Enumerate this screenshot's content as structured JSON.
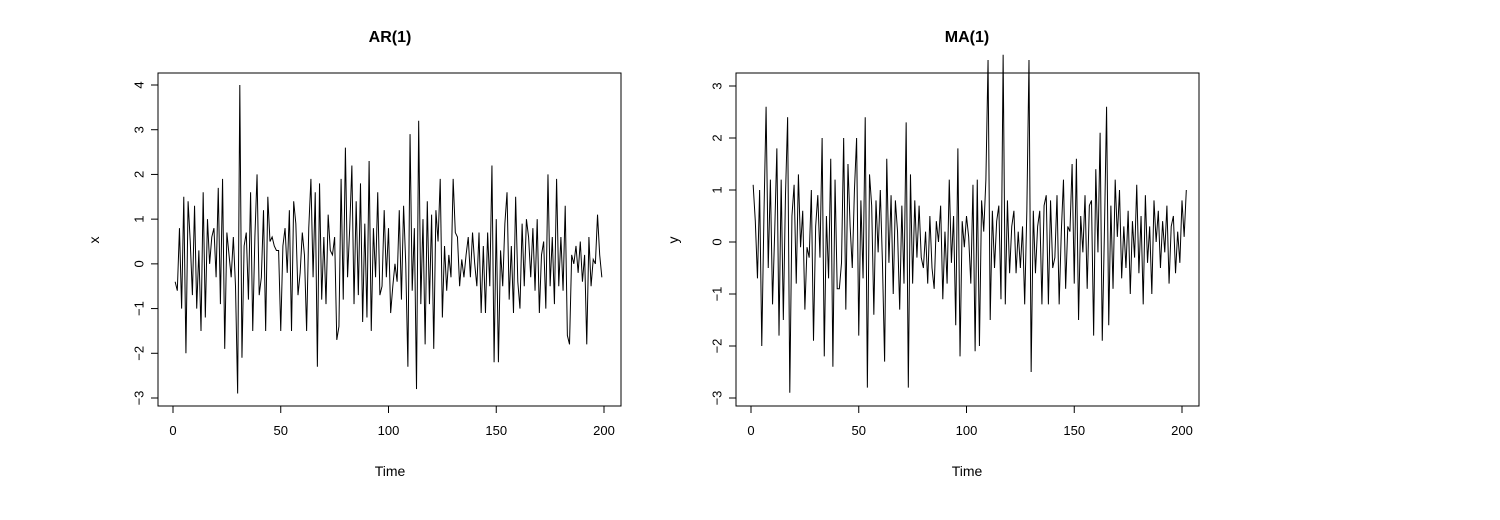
{
  "chart_data": [
    {
      "type": "line",
      "title": "AR(1)",
      "xlabel": "Time",
      "ylabel": "x",
      "xlim": [
        1,
        200
      ],
      "ylim": [
        -3,
        4
      ],
      "xticks": [
        0,
        50,
        100,
        150,
        200
      ],
      "xtick_labels": [
        "0",
        "50",
        "100",
        "150",
        "200"
      ],
      "yticks": [
        -3,
        -2,
        -1,
        0,
        1,
        2,
        3,
        4
      ],
      "ytick_labels": [
        "−3",
        "−2",
        "−1",
        "0",
        "1",
        "2",
        "3",
        "4"
      ],
      "grid": false,
      "line_color": "#000000",
      "series": [
        {
          "x_start": 1,
          "x_step": 1,
          "values": [
            -0.4,
            -0.6,
            0.8,
            -1.0,
            1.5,
            -2.0,
            1.4,
            0.5,
            -0.7,
            1.3,
            -1.0,
            0.3,
            -1.5,
            1.6,
            -1.2,
            1.0,
            0.0,
            0.6,
            0.8,
            -0.3,
            1.7,
            -0.9,
            1.9,
            -1.9,
            0.7,
            0.2,
            -0.3,
            0.6,
            -0.5,
            -2.9,
            4.0,
            -2.1,
            0.4,
            0.7,
            -0.8,
            1.6,
            -1.5,
            0.6,
            2.0,
            -0.7,
            -0.3,
            1.2,
            -1.5,
            1.5,
            0.5,
            0.6,
            0.4,
            0.3,
            0.3,
            -1.5,
            0.4,
            0.8,
            -0.2,
            1.2,
            -1.5,
            1.4,
            0.9,
            -0.7,
            -0.2,
            0.7,
            0.2,
            -1.5,
            0.8,
            1.9,
            -0.3,
            1.6,
            -2.3,
            1.8,
            -0.8,
            0.6,
            -0.9,
            1.1,
            0.3,
            0.2,
            0.6,
            -1.7,
            -1.4,
            1.9,
            -0.8,
            2.6,
            -0.3,
            0.8,
            2.2,
            -0.9,
            1.4,
            -0.7,
            1.8,
            -1.3,
            0.9,
            -1.2,
            2.3,
            -1.5,
            0.8,
            -0.3,
            1.6,
            -0.7,
            -0.5,
            1.2,
            -0.3,
            0.8,
            -1.1,
            -0.5,
            0.0,
            -0.4,
            1.2,
            -0.8,
            1.3,
            0.0,
            -2.3,
            2.9,
            -0.6,
            0.8,
            -2.8,
            3.2,
            -0.9,
            1.0,
            -1.8,
            1.4,
            -0.9,
            1.1,
            -1.9,
            1.2,
            0.5,
            1.9,
            -1.2,
            0.4,
            -0.6,
            0.2,
            -0.3,
            1.9,
            0.7,
            0.6,
            -0.5,
            0.1,
            -0.3,
            0.2,
            0.6,
            -0.3,
            0.7,
            0.0,
            -0.5,
            0.7,
            -1.1,
            0.4,
            -1.1,
            0.7,
            -0.5,
            2.2,
            -2.2,
            1.0,
            -2.2,
            0.3,
            -0.5,
            0.9,
            1.6,
            -0.8,
            0.4,
            -1.1,
            1.5,
            -0.4,
            -1.0,
            0.9,
            -0.5,
            1.0,
            0.6,
            -0.3,
            0.8,
            -0.6,
            1.0,
            -1.1,
            0.2,
            0.5,
            -1.0,
            2.0,
            -0.5,
            0.6,
            -0.9,
            1.9,
            -0.5,
            0.6,
            -0.6,
            1.3,
            -1.6,
            -1.8,
            0.2,
            0.0,
            0.4,
            -0.2,
            0.5,
            -0.4,
            0.2,
            -1.8,
            0.6,
            -0.5,
            0.1,
            0.0,
            1.1,
            0.2,
            -0.3
          ]
        }
      ]
    },
    {
      "type": "line",
      "title": "MA(1)",
      "xlabel": "Time",
      "ylabel": "y",
      "xlim": [
        1,
        200
      ],
      "ylim": [
        -3,
        3.6
      ],
      "xticks": [
        0,
        50,
        100,
        150,
        200
      ],
      "xtick_labels": [
        "0",
        "50",
        "100",
        "150",
        "200"
      ],
      "yticks": [
        -3,
        -2,
        -1,
        0,
        1,
        2,
        3
      ],
      "ytick_labels": [
        "−3",
        "−2",
        "−1",
        "0",
        "1",
        "2",
        "3"
      ],
      "grid": false,
      "line_color": "#000000",
      "series": [
        {
          "x_start": 1,
          "x_step": 1,
          "values": [
            1.1,
            0.4,
            -0.7,
            1.0,
            -2.0,
            0.5,
            2.6,
            -0.5,
            1.2,
            -1.2,
            0.2,
            1.8,
            -1.8,
            1.2,
            -1.5,
            0.9,
            2.4,
            -2.9,
            0.5,
            1.1,
            -0.8,
            1.3,
            -0.1,
            0.6,
            -1.3,
            -0.1,
            -0.3,
            1.0,
            -1.9,
            0.3,
            0.9,
            -0.3,
            2.0,
            -2.2,
            0.5,
            -0.7,
            1.6,
            -2.4,
            1.2,
            -0.9,
            -0.9,
            -0.4,
            2.0,
            -1.3,
            1.5,
            0.3,
            -0.5,
            1.0,
            2.0,
            -1.8,
            0.8,
            -0.7,
            2.4,
            -2.8,
            1.3,
            0.7,
            -1.4,
            0.8,
            -0.2,
            1.0,
            -0.4,
            -2.3,
            1.6,
            -0.4,
            0.9,
            -1.0,
            0.8,
            0.2,
            -1.3,
            0.7,
            -0.8,
            2.3,
            -2.8,
            1.3,
            -0.8,
            0.8,
            -0.3,
            0.7,
            -0.3,
            -0.5,
            0.2,
            -0.8,
            0.5,
            -0.5,
            -0.9,
            0.4,
            0.0,
            0.7,
            -1.1,
            0.2,
            -0.8,
            1.2,
            -0.4,
            0.5,
            -1.6,
            1.8,
            -2.2,
            0.4,
            -0.1,
            0.5,
            0.1,
            -0.8,
            1.1,
            -2.1,
            1.2,
            -2.0,
            0.8,
            0.2,
            1.2,
            3.5,
            -1.5,
            0.6,
            -0.5,
            0.4,
            0.7,
            -1.1,
            3.6,
            -1.2,
            0.8,
            -0.6,
            0.3,
            0.6,
            -0.6,
            0.2,
            -0.5,
            0.3,
            -1.2,
            0.6,
            3.5,
            -2.5,
            0.6,
            -0.6,
            0.3,
            0.6,
            -1.2,
            0.7,
            0.9,
            -1.2,
            0.8,
            -0.5,
            -0.3,
            0.9,
            -1.2,
            0.2,
            1.2,
            -0.9,
            0.3,
            0.2,
            1.5,
            -0.8,
            1.6,
            -1.5,
            0.5,
            -0.2,
            0.9,
            -0.9,
            0.7,
            0.8,
            -1.8,
            1.4,
            -0.2,
            2.1,
            -1.9,
            0.2,
            2.6,
            -1.6,
            0.7,
            -0.9,
            1.2,
            0.1,
            1.0,
            -0.7,
            0.3,
            -0.5,
            0.6,
            -1.0,
            0.4,
            -0.3,
            1.1,
            -0.6,
            0.5,
            -1.2,
            0.9,
            -0.4,
            0.3,
            -1.0,
            0.8,
            0.0,
            0.6,
            -0.5,
            0.4,
            -0.2,
            0.7,
            -0.8,
            0.3,
            0.5,
            -0.6,
            0.2,
            -0.4,
            0.8,
            0.1,
            1.0
          ]
        }
      ]
    }
  ]
}
